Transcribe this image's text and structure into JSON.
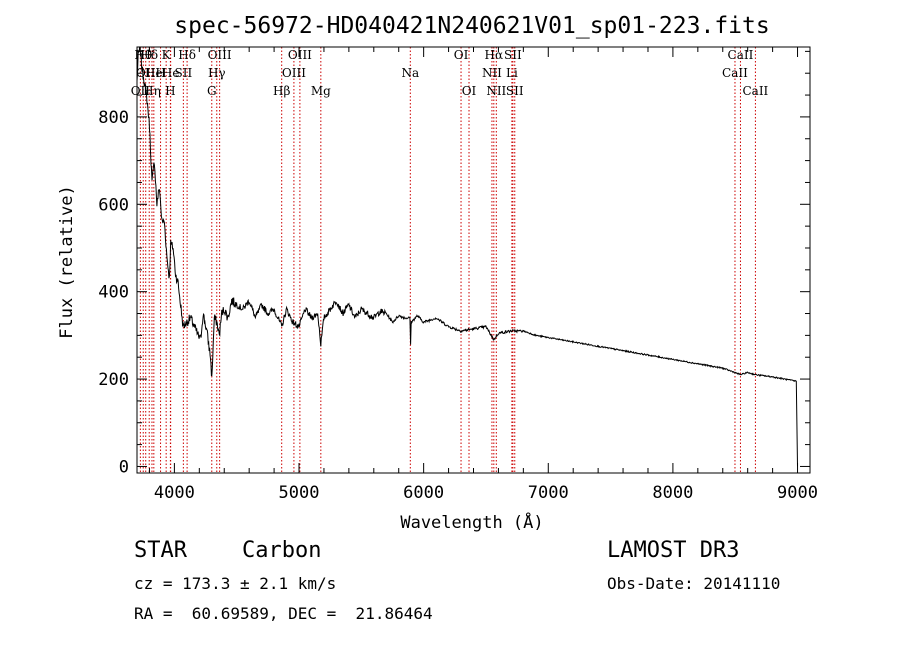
{
  "chart_data": {
    "type": "line",
    "title": "spec-56972-HD040421N240621V01_sp01-223.fits",
    "xlabel": "Wavelength (Å)",
    "ylabel": "Flux (relative)",
    "xlim": [
      3700,
      9100
    ],
    "ylim": [
      -15,
      960
    ],
    "xticks": [
      4000,
      5000,
      6000,
      7000,
      8000,
      9000
    ],
    "xtick_labels": [
      "4000",
      "5000",
      "6000",
      "7000",
      "8000",
      "9000"
    ],
    "yticks": [
      0,
      200,
      400,
      600,
      800
    ],
    "ytick_labels": [
      "0",
      "200",
      "400",
      "600",
      "800"
    ],
    "series": [
      {
        "name": "flux",
        "x": [
          3700,
          3710,
          3725,
          3740,
          3760,
          3780,
          3800,
          3820,
          3840,
          3860,
          3880,
          3900,
          3920,
          3940,
          3960,
          3970,
          3990,
          4010,
          4030,
          4050,
          4070,
          4100,
          4130,
          4160,
          4190,
          4210,
          4230,
          4260,
          4290,
          4300,
          4320,
          4340,
          4360,
          4380,
          4400,
          4430,
          4460,
          4500,
          4550,
          4600,
          4650,
          4700,
          4750,
          4800,
          4861,
          4900,
          4950,
          5000,
          5050,
          5100,
          5150,
          5175,
          5200,
          5250,
          5300,
          5350,
          5400,
          5450,
          5500,
          5550,
          5600,
          5650,
          5700,
          5750,
          5800,
          5850,
          5890,
          5895,
          5900,
          5950,
          6000,
          6100,
          6200,
          6300,
          6400,
          6500,
          6563,
          6600,
          6700,
          6800,
          6900,
          7000,
          7200,
          7400,
          7600,
          7800,
          8000,
          8200,
          8400,
          8498,
          8542,
          8600,
          8662,
          8800,
          8950,
          8990,
          9000
        ],
        "y": [
          880,
          940,
          960,
          910,
          880,
          840,
          780,
          650,
          700,
          600,
          640,
          560,
          560,
          480,
          430,
          510,
          500,
          440,
          420,
          370,
          320,
          330,
          340,
          320,
          300,
          290,
          350,
          310,
          250,
          200,
          340,
          330,
          300,
          350,
          360,
          340,
          380,
          370,
          360,
          380,
          340,
          370,
          350,
          360,
          320,
          360,
          330,
          320,
          360,
          340,
          350,
          280,
          340,
          360,
          380,
          350,
          370,
          340,
          360,
          350,
          340,
          355,
          350,
          330,
          345,
          340,
          340,
          280,
          330,
          345,
          330,
          340,
          320,
          310,
          315,
          320,
          290,
          305,
          310,
          310,
          300,
          295,
          285,
          275,
          265,
          255,
          245,
          235,
          225,
          215,
          210,
          215,
          210,
          205,
          197,
          195,
          0
        ]
      }
    ],
    "lines": [
      {
        "w": 3727,
        "row": 2,
        "label": "OII",
        "italic": false
      },
      {
        "w": 3750,
        "row": 0,
        "label": "Hθ",
        "italic": false
      },
      {
        "w": 3770,
        "row": 1,
        "label": "OII",
        "italic": false
      },
      {
        "w": 3798,
        "row": 0,
        "label": "Hδ",
        "italic": false
      },
      {
        "w": 3820,
        "row": 2,
        "label": "Hη",
        "italic": false
      },
      {
        "w": 3835,
        "row": 1,
        "label": "He",
        "italic": false
      },
      {
        "w": 3889,
        "row": 1,
        "label": "H",
        "italic": false
      },
      {
        "w": 3934,
        "row": 0,
        "label": "K",
        "italic": false
      },
      {
        "w": 3968,
        "row": 2,
        "label": "H",
        "italic": false
      },
      {
        "w": 3970,
        "row": 1,
        "label": "He",
        "italic": false
      },
      {
        "w": 4072,
        "row": 1,
        "label": "SII",
        "italic": false
      },
      {
        "w": 4102,
        "row": 0,
        "label": "Hδ",
        "italic": false
      },
      {
        "w": 4300,
        "row": 2,
        "label": "G",
        "italic": false
      },
      {
        "w": 4340,
        "row": 1,
        "label": "Hγ",
        "italic": false
      },
      {
        "w": 4363,
        "row": 0,
        "label": "OIII",
        "italic": false
      },
      {
        "w": 4861,
        "row": 2,
        "label": "Hβ",
        "italic": false
      },
      {
        "w": 4959,
        "row": 1,
        "label": "OIII",
        "italic": false
      },
      {
        "w": 5007,
        "row": 0,
        "label": "OIII",
        "italic": false
      },
      {
        "w": 5175,
        "row": 2,
        "label": "Mg",
        "italic": false
      },
      {
        "w": 5893,
        "row": 1,
        "label": "Na",
        "italic": false
      },
      {
        "w": 6300,
        "row": 0,
        "label": "OI",
        "italic": false
      },
      {
        "w": 6364,
        "row": 2,
        "label": "OI",
        "italic": false
      },
      {
        "w": 6548,
        "row": 1,
        "label": "NII",
        "italic": false
      },
      {
        "w": 6563,
        "row": 0,
        "label": "Hα",
        "italic": false
      },
      {
        "w": 6583,
        "row": 2,
        "label": "NII",
        "italic": false
      },
      {
        "w": 6708,
        "row": 1,
        "label": "Li",
        "italic": false
      },
      {
        "w": 6716,
        "row": 0,
        "label": "SII",
        "italic": false
      },
      {
        "w": 6731,
        "row": 2,
        "label": "SII",
        "italic": false
      },
      {
        "w": 8498,
        "row": 1,
        "label": "CaII",
        "italic": false
      },
      {
        "w": 8542,
        "row": 0,
        "label": "CaII",
        "italic": false
      },
      {
        "w": 8662,
        "row": 2,
        "label": "CaII",
        "italic": false
      }
    ]
  },
  "info": {
    "object_class": "STAR",
    "subclass": "Carbon",
    "survey": "LAMOST DR3",
    "cz": "cz = 173.3 ± 2.1 km/s",
    "obs_date": "Obs-Date: 20141110",
    "radec": "RA =  60.69589, DEC =  21.86464"
  }
}
